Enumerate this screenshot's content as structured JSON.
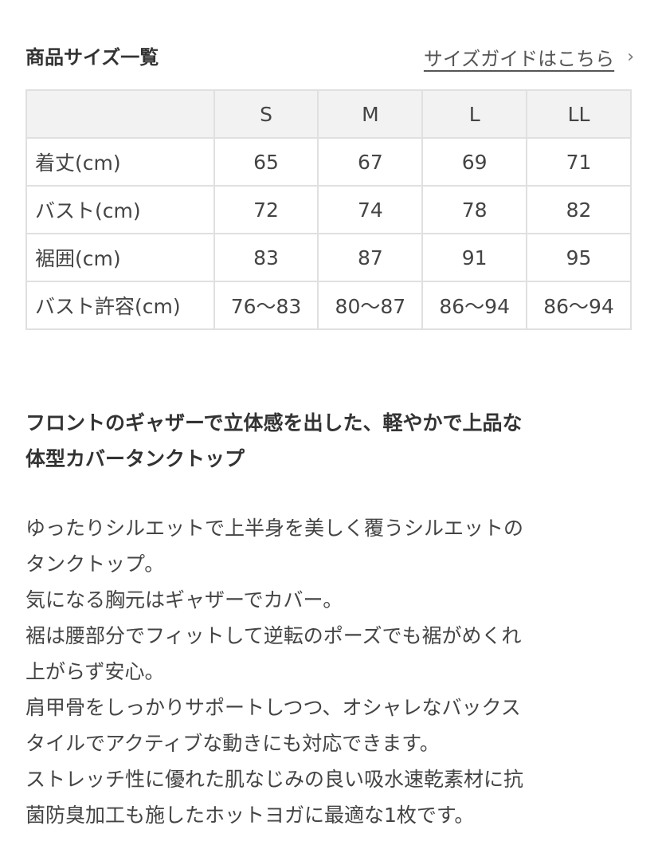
{
  "header": {
    "title": "商品サイズ一覧",
    "guide_link": "サイズガイドはこちら",
    "chevron_icon": "chevron-right-icon"
  },
  "size_table": {
    "columns": [
      "",
      "S",
      "M",
      "L",
      "LL"
    ],
    "rows": [
      {
        "label": "着丈(cm)",
        "values": [
          "65",
          "67",
          "69",
          "71"
        ]
      },
      {
        "label": "バスト(cm)",
        "values": [
          "72",
          "74",
          "78",
          "82"
        ]
      },
      {
        "label": "裾囲(cm)",
        "values": [
          "83",
          "87",
          "91",
          "95"
        ]
      },
      {
        "label": "バスト許容(cm)",
        "values": [
          "76〜83",
          "80〜87",
          "86〜94",
          "86〜94"
        ]
      }
    ]
  },
  "description": {
    "heading_lines": [
      "フロントのギャザーで立体感を出した、軽やかで上品な",
      "体型カバータンクトップ"
    ],
    "body_lines": [
      "ゆったりシルエットで上半身を美しく覆うシルエットの",
      "タンクトップ。",
      "気になる胸元はギャザーでカバー。",
      "裾は腰部分でフィットして逆転のポーズでも裾がめくれ",
      "上がらず安心。",
      "肩甲骨をしっかりサポートしつつ、オシャレなバックス",
      "タイルでアクティブな動きにも対応できます。",
      "ストレッチ性に優れた肌なじみの良い吸水速乾素材に抗",
      "菌防臭加工も施したホットヨガに最適な1枚です。"
    ]
  }
}
